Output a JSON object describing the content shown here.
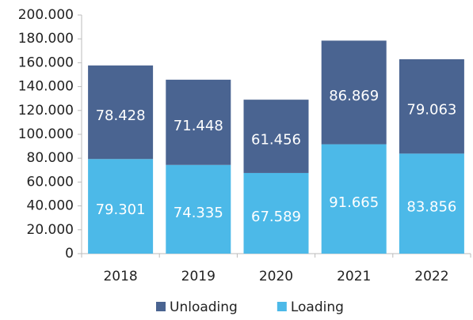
{
  "chart_data": {
    "type": "stacked_bar",
    "categories": [
      "2018",
      "2019",
      "2020",
      "2021",
      "2022"
    ],
    "series": [
      {
        "name": "Unloading",
        "color": "#4a6491",
        "values": [
          78428,
          71448,
          61456,
          86869,
          79063
        ],
        "value_labels": [
          "78.428",
          "71.448",
          "61.456",
          "86.869",
          "79.063"
        ]
      },
      {
        "name": "Loading",
        "color": "#4cb9e8",
        "values": [
          79301,
          74335,
          67589,
          91665,
          83856
        ],
        "value_labels": [
          "79.301",
          "74.335",
          "67.589",
          "91.665",
          "83.856"
        ]
      }
    ],
    "ylim": [
      0,
      200000
    ],
    "yticks": [
      {
        "value": 0,
        "label": "0"
      },
      {
        "value": 20000,
        "label": "20.000"
      },
      {
        "value": 40000,
        "label": "40.000"
      },
      {
        "value": 60000,
        "label": "60.000"
      },
      {
        "value": 80000,
        "label": "80.000"
      },
      {
        "value": 100000,
        "label": "100.000"
      },
      {
        "value": 120000,
        "label": "120.000"
      },
      {
        "value": 140000,
        "label": "140.000"
      },
      {
        "value": 160000,
        "label": "160.000"
      },
      {
        "value": 180000,
        "label": "180.000"
      },
      {
        "value": 200000,
        "label": "200.000"
      }
    ],
    "legend": "bottom"
  }
}
